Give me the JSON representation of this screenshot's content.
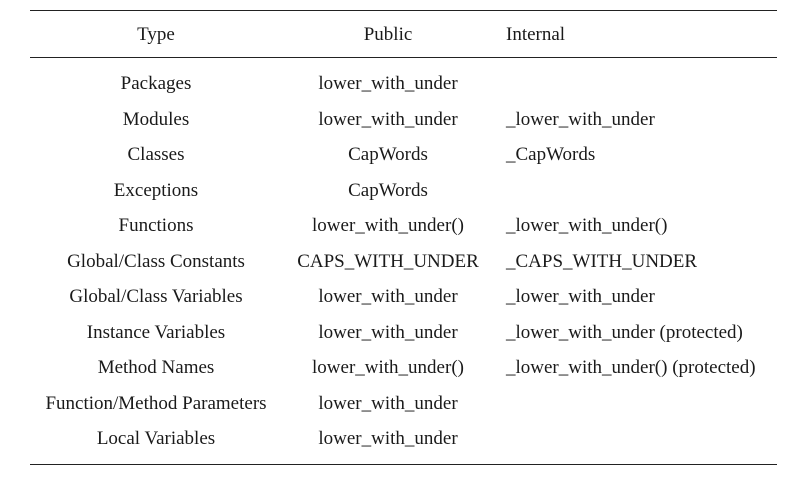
{
  "table": {
    "headers": {
      "type": "Type",
      "public": "Public",
      "internal": "Internal"
    },
    "rows": [
      {
        "type": "Packages",
        "public": "lower_with_under",
        "internal": ""
      },
      {
        "type": "Modules",
        "public": "lower_with_under",
        "internal": "_lower_with_under"
      },
      {
        "type": "Classes",
        "public": "CapWords",
        "internal": "_CapWords"
      },
      {
        "type": "Exceptions",
        "public": "CapWords",
        "internal": ""
      },
      {
        "type": "Functions",
        "public": "lower_with_under()",
        "internal": "_lower_with_under()"
      },
      {
        "type": "Global/Class Constants",
        "public": "CAPS_WITH_UNDER",
        "internal": "_CAPS_WITH_UNDER"
      },
      {
        "type": "Global/Class Variables",
        "public": "lower_with_under",
        "internal": "_lower_with_under"
      },
      {
        "type": "Instance Variables",
        "public": "lower_with_under",
        "internal": "_lower_with_under (protected)"
      },
      {
        "type": "Method Names",
        "public": "lower_with_under()",
        "internal": "_lower_with_under() (protected)"
      },
      {
        "type": "Function/Method Parameters",
        "public": "lower_with_under",
        "internal": ""
      },
      {
        "type": "Local Variables",
        "public": "lower_with_under",
        "internal": ""
      }
    ]
  }
}
